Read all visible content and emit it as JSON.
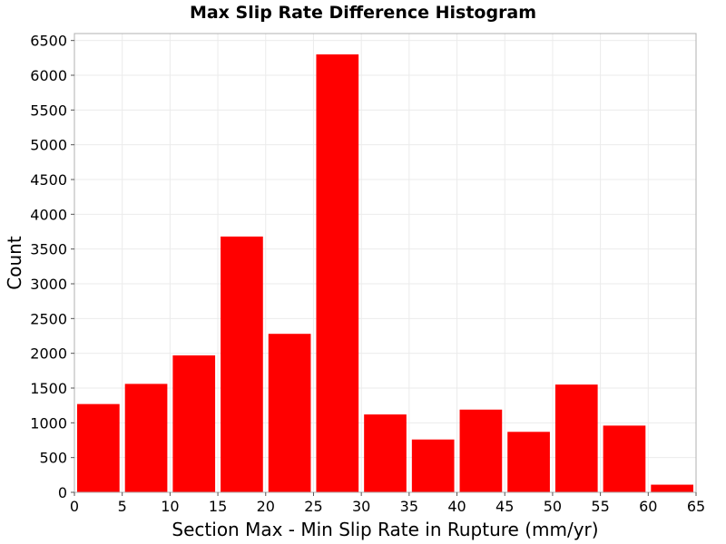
{
  "chart_data": {
    "type": "bar",
    "title": "Max Slip Rate Difference Histogram",
    "xlabel": "Section Max - Min Slip Rate in Rupture (mm/yr)",
    "ylabel": "Count",
    "xlim": [
      0,
      65
    ],
    "ylim": [
      0,
      6600
    ],
    "xticks": [
      0,
      5,
      10,
      15,
      20,
      25,
      30,
      35,
      40,
      45,
      50,
      55,
      60,
      65
    ],
    "yticks": [
      0,
      500,
      1000,
      1500,
      2000,
      2500,
      3000,
      3500,
      4000,
      4500,
      5000,
      5500,
      6000,
      6500
    ],
    "bin_width": 5,
    "bins": [
      {
        "x0": 0,
        "x1": 5,
        "value": 1270
      },
      {
        "x0": 5,
        "x1": 10,
        "value": 1560
      },
      {
        "x0": 10,
        "x1": 15,
        "value": 1970
      },
      {
        "x0": 15,
        "x1": 20,
        "value": 3680
      },
      {
        "x0": 20,
        "x1": 25,
        "value": 2280
      },
      {
        "x0": 25,
        "x1": 30,
        "value": 6300
      },
      {
        "x0": 30,
        "x1": 35,
        "value": 1120
      },
      {
        "x0": 35,
        "x1": 40,
        "value": 760
      },
      {
        "x0": 40,
        "x1": 45,
        "value": 1190
      },
      {
        "x0": 45,
        "x1": 50,
        "value": 870
      },
      {
        "x0": 50,
        "x1": 55,
        "value": 1550
      },
      {
        "x0": 55,
        "x1": 60,
        "value": 960
      },
      {
        "x0": 60,
        "x1": 65,
        "value": 110
      }
    ],
    "bar_color": "#ff0000",
    "grid": true,
    "legend": false
  }
}
